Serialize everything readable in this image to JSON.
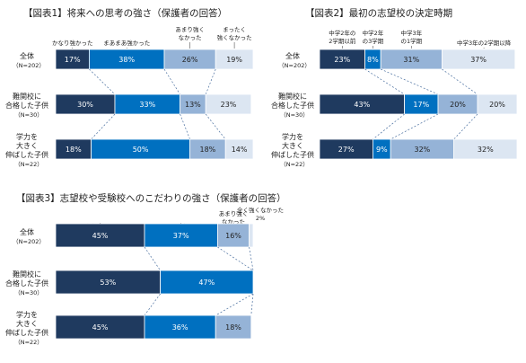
{
  "chart_data": [
    {
      "type": "bar",
      "stacked": true,
      "orientation": "horizontal",
      "percent_stacked": true,
      "title": "【図表1】将来への思考の強さ（保護者の回答）",
      "categories": [
        {
          "label": [
            "全体"
          ],
          "n": "（N=202）"
        },
        {
          "label": [
            "難関校に",
            "合格した子供"
          ],
          "n": "（N=30）"
        },
        {
          "label": [
            "学力を",
            "大きく",
            "伸ばした子供"
          ],
          "n": "（N=22）"
        }
      ],
      "series": [
        {
          "name": [
            "かなり強かった"
          ],
          "values": [
            17,
            30,
            18
          ],
          "labels": [
            "17%",
            "30%",
            "18%"
          ],
          "color": "#1f3a5f"
        },
        {
          "name": [
            "まあまあ強かった"
          ],
          "values": [
            38,
            33,
            50
          ],
          "labels": [
            "38%",
            "33%",
            "50%"
          ],
          "color": "#0070c0"
        },
        {
          "name": [
            "あまり強く",
            "なかった"
          ],
          "values": [
            26,
            13,
            18
          ],
          "labels": [
            "26%",
            "13%",
            "18%"
          ],
          "color": "#95b3d7"
        },
        {
          "name": [
            "まったく",
            "強くなかった"
          ],
          "values": [
            19,
            23,
            14
          ],
          "labels": [
            "19%",
            "23%",
            "14%"
          ],
          "color": "#dce6f2"
        }
      ],
      "xlim": [
        0,
        100
      ],
      "grid": false
    },
    {
      "type": "bar",
      "stacked": true,
      "orientation": "horizontal",
      "percent_stacked": true,
      "title": "【図表2】最初の志望校の決定時期",
      "categories": [
        {
          "label": [
            "全体"
          ],
          "n": "（N=202）"
        },
        {
          "label": [
            "難関校に",
            "合格した子供"
          ],
          "n": "（N=30）"
        },
        {
          "label": [
            "学力を",
            "大きく",
            "伸ばした子供"
          ],
          "n": "（N=22）"
        }
      ],
      "series": [
        {
          "name": [
            "中学2年の",
            "2学期以前"
          ],
          "values": [
            23,
            43,
            27
          ],
          "labels": [
            "23%",
            "43%",
            "27%"
          ],
          "color": "#1f3a5f"
        },
        {
          "name": [
            "中学2年",
            "の3学期"
          ],
          "values": [
            8,
            17,
            9
          ],
          "labels": [
            "8%",
            "17%",
            "9%"
          ],
          "color": "#0070c0"
        },
        {
          "name": [
            "中学3年",
            "の1学期"
          ],
          "values": [
            31,
            20,
            32
          ],
          "labels": [
            "31%",
            "20%",
            "32%"
          ],
          "color": "#95b3d7"
        },
        {
          "name": [
            "中学3年の2学期以降"
          ],
          "values": [
            37,
            20,
            32
          ],
          "labels": [
            "37%",
            "20%",
            "32%"
          ],
          "color": "#dce6f2"
        }
      ],
      "xlim": [
        0,
        100
      ],
      "grid": false
    },
    {
      "type": "bar",
      "stacked": true,
      "orientation": "horizontal",
      "percent_stacked": true,
      "title": "【図表3】志望校や受験校へのこだわりの強さ（保護者の回答）",
      "categories": [
        {
          "label": [
            "全体"
          ],
          "n": "（N=202）"
        },
        {
          "label": [
            "難関校に",
            "合格した子供"
          ],
          "n": "（N=30）"
        },
        {
          "label": [
            "学力を",
            "大きく",
            "伸ばした子供"
          ],
          "n": "（N=22）"
        }
      ],
      "series": [
        {
          "name": [
            "かなり強かった"
          ],
          "values": [
            45,
            53,
            45
          ],
          "labels": [
            "45%",
            "53%",
            "45%"
          ],
          "color": "#1f3a5f"
        },
        {
          "name": [
            "まあまあ強かった"
          ],
          "values": [
            37,
            47,
            36
          ],
          "labels": [
            "37%",
            "47%",
            "36%"
          ],
          "color": "#0070c0"
        },
        {
          "name": [
            "あまり強く",
            "なかった"
          ],
          "values": [
            16,
            0,
            18
          ],
          "labels": [
            "16%",
            "",
            "18%"
          ],
          "color": "#95b3d7"
        },
        {
          "name": [
            "全く強くなかった",
            "2%"
          ],
          "values": [
            2,
            0,
            0
          ],
          "labels": [
            "",
            "",
            ""
          ],
          "color": "#dce6f2"
        }
      ],
      "xlim": [
        0,
        100
      ],
      "grid": false
    }
  ]
}
